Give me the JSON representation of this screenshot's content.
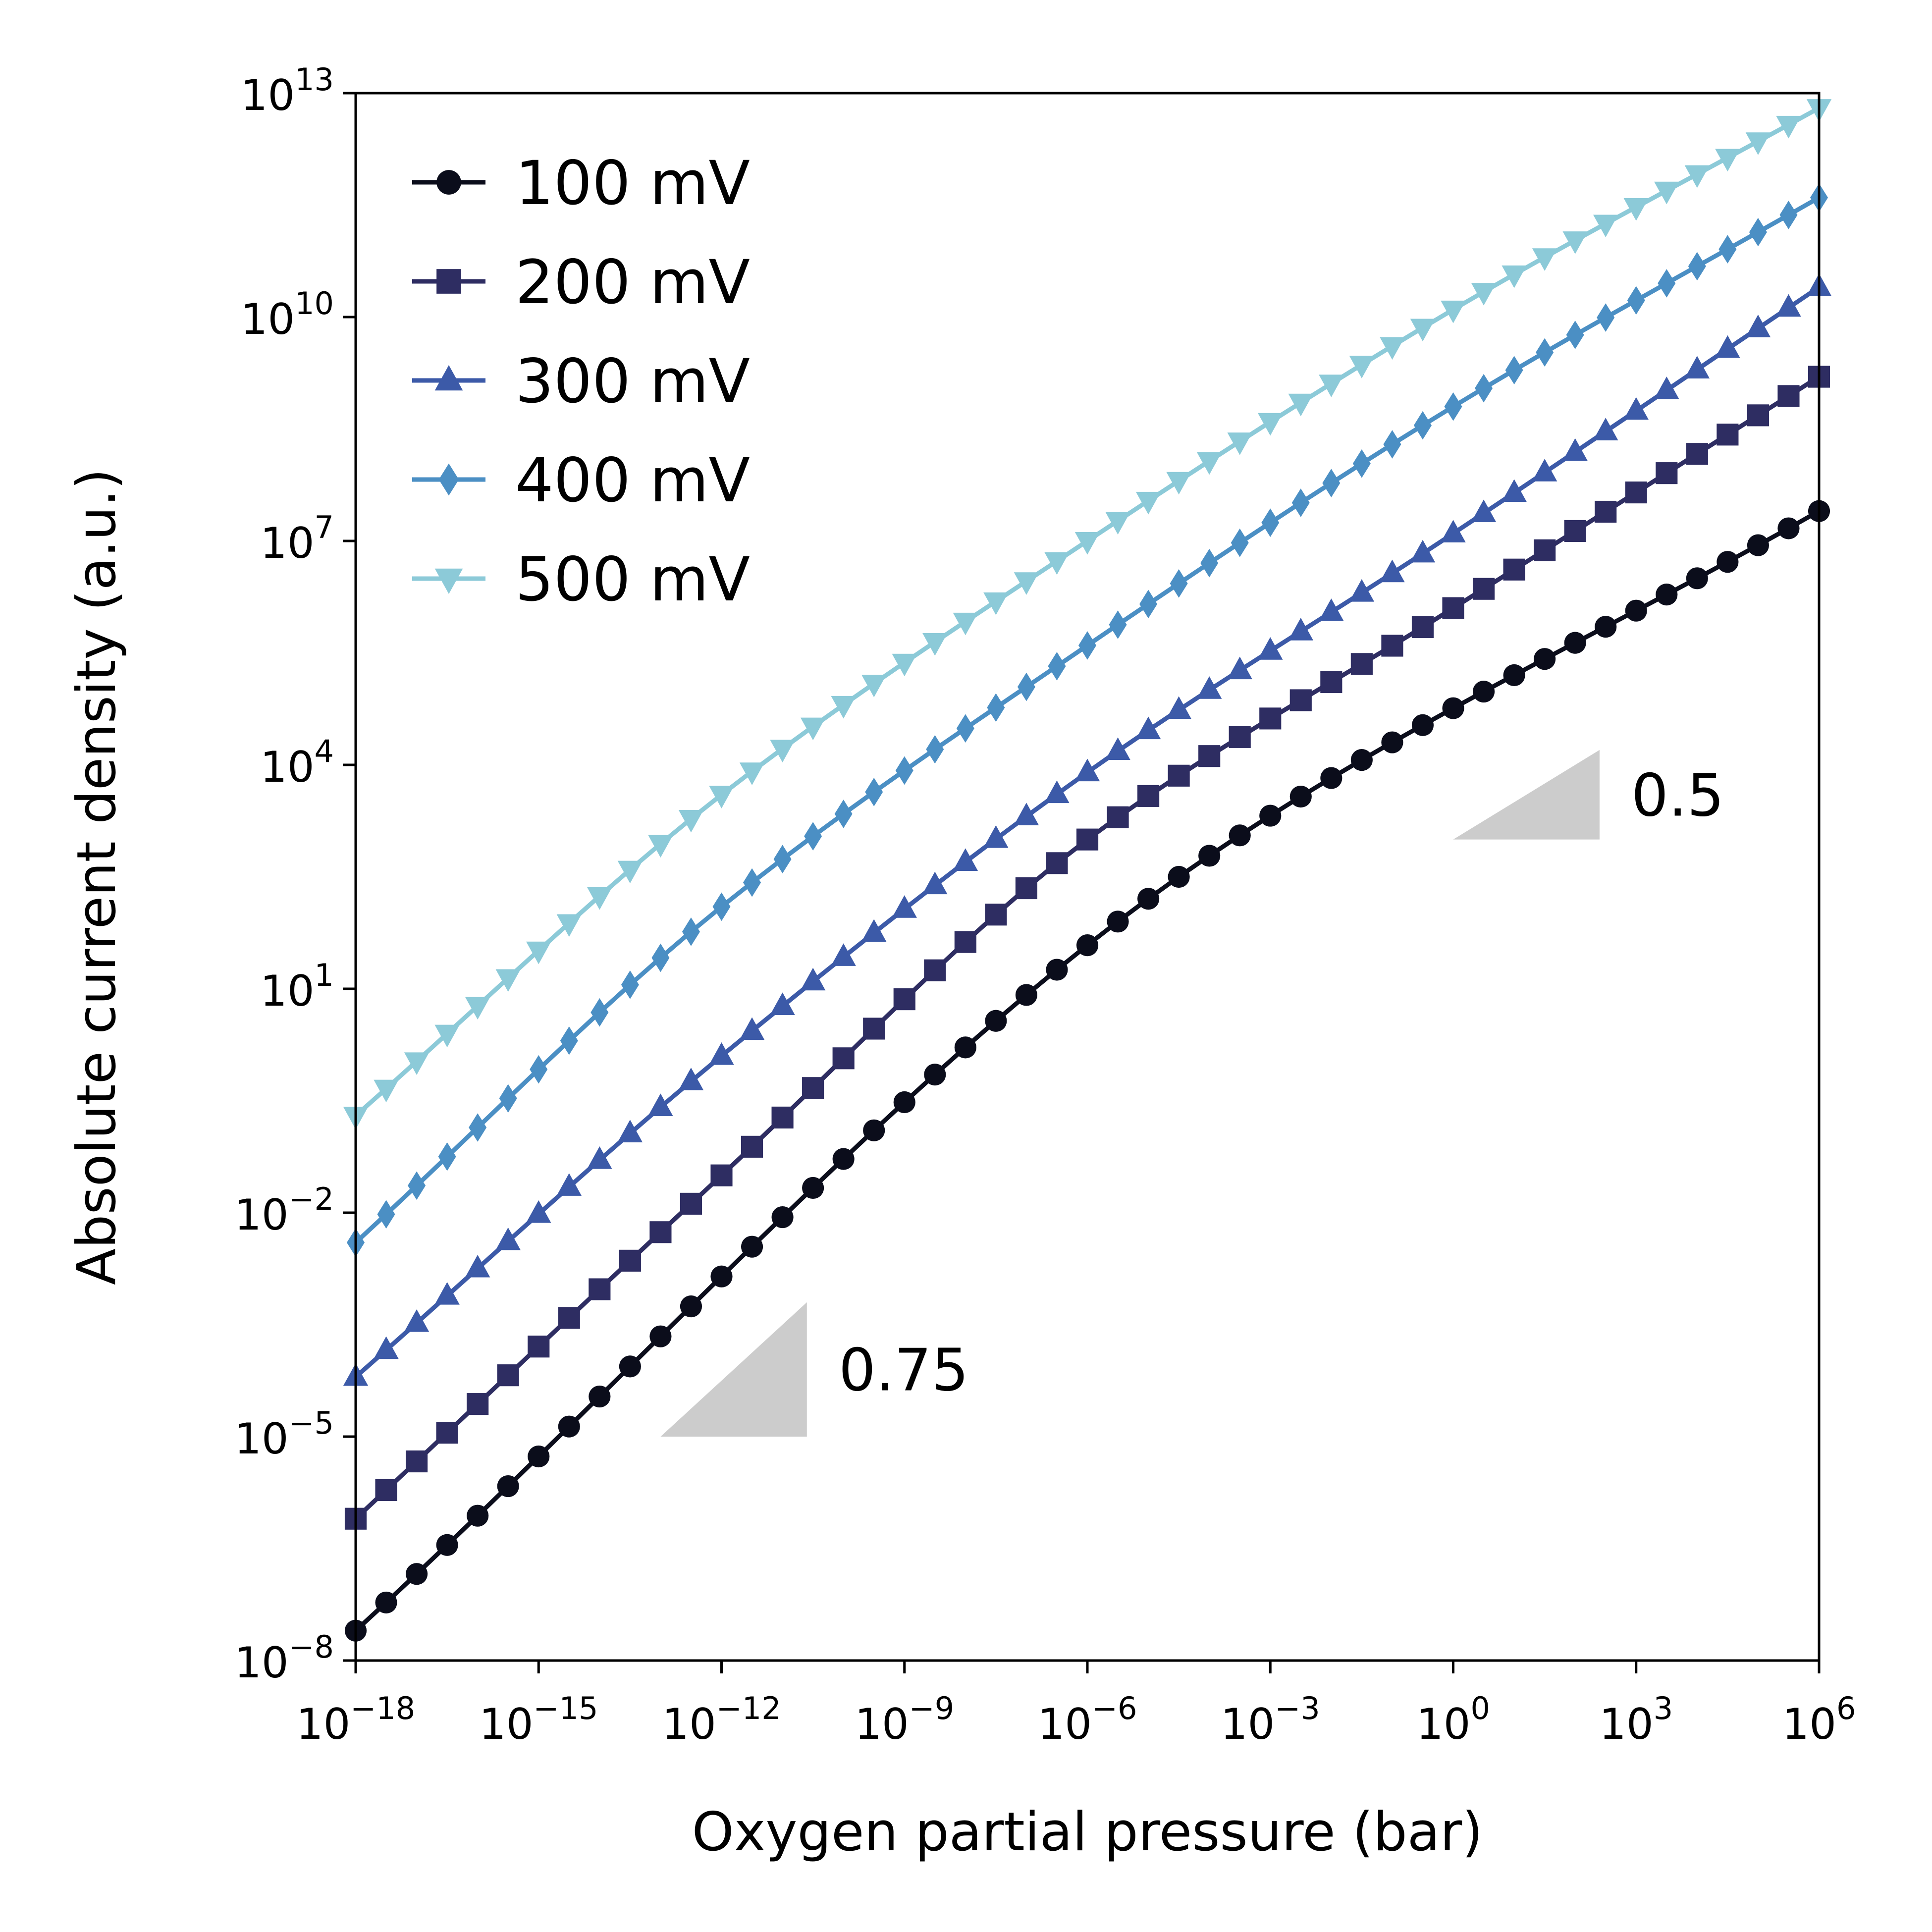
{
  "chart_data": {
    "type": "line",
    "xlabel": "Oxygen partial pressure (bar)",
    "ylabel": "Absolute current density (a.u.)",
    "xscale": "log",
    "yscale": "log",
    "xlim_exp": [
      -18,
      6
    ],
    "ylim_exp": [
      -8,
      13
    ],
    "x_ticks": [
      {
        "base": "10",
        "exp": "−18",
        "value_exp": -18
      },
      {
        "base": "10",
        "exp": "−15",
        "value_exp": -15
      },
      {
        "base": "10",
        "exp": "−12",
        "value_exp": -12
      },
      {
        "base": "10",
        "exp": "−9",
        "value_exp": -9
      },
      {
        "base": "10",
        "exp": "−6",
        "value_exp": -6
      },
      {
        "base": "10",
        "exp": "−3",
        "value_exp": -3
      },
      {
        "base": "10",
        "exp": "0",
        "value_exp": 0
      },
      {
        "base": "10",
        "exp": "3",
        "value_exp": 3
      },
      {
        "base": "10",
        "exp": "6",
        "value_exp": 6
      }
    ],
    "y_ticks": [
      {
        "base": "10",
        "exp": "−8",
        "value_exp": -8
      },
      {
        "base": "10",
        "exp": "−5",
        "value_exp": -5
      },
      {
        "base": "10",
        "exp": "−2",
        "value_exp": -2
      },
      {
        "base": "10",
        "exp": "1",
        "value_exp": 1
      },
      {
        "base": "10",
        "exp": "4",
        "value_exp": 4
      },
      {
        "base": "10",
        "exp": "7",
        "value_exp": 7
      },
      {
        "base": "10",
        "exp": "10",
        "value_exp": 10
      },
      {
        "base": "10",
        "exp": "13",
        "value_exp": 13
      }
    ],
    "grid": false,
    "legend_position": "top-left",
    "points_per_series": 49,
    "series": [
      {
        "name": "100 mV",
        "marker": "circle",
        "color": "#0b0d1b",
        "x_exp": [
          -18,
          -4.5,
          6
        ],
        "y_exp": [
          -7.6,
          2.5,
          7.4
        ]
      },
      {
        "name": "200 mV",
        "marker": "square",
        "color": "#2e2d62",
        "x_exp": [
          -18,
          -12,
          -6,
          0,
          6
        ],
        "y_exp": [
          -6.1,
          -1.5,
          3.0,
          6.1,
          9.2
        ]
      },
      {
        "name": "300 mV",
        "marker": "triangle-up",
        "color": "#3c5aa8",
        "x_exp": [
          -18,
          -12,
          -6,
          0,
          6
        ],
        "y_exp": [
          -4.2,
          0.1,
          3.9,
          7.1,
          10.4
        ]
      },
      {
        "name": "400 mV",
        "marker": "diamond",
        "color": "#4b8fc4",
        "x_exp": [
          -18,
          -12,
          -6,
          0,
          6
        ],
        "y_exp": [
          -2.4,
          2.1,
          5.6,
          8.8,
          11.6
        ]
      },
      {
        "name": "500 mV",
        "marker": "triangle-down",
        "color": "#8ccad8",
        "x_exp": [
          -18,
          -12,
          -6,
          0,
          6
        ],
        "y_exp": [
          -0.7,
          3.6,
          7.0,
          10.1,
          12.8
        ]
      }
    ],
    "annotations": [
      {
        "label": "0.75",
        "slope": 0.75,
        "anchor_x_exp": -13,
        "anchor_y_exp": -5,
        "run": 2.4,
        "color": "#cccccc"
      },
      {
        "label": "0.5",
        "slope": 0.5,
        "anchor_x_exp": 0,
        "anchor_y_exp": 3,
        "run": 2.4,
        "color": "#cccccc"
      }
    ]
  }
}
